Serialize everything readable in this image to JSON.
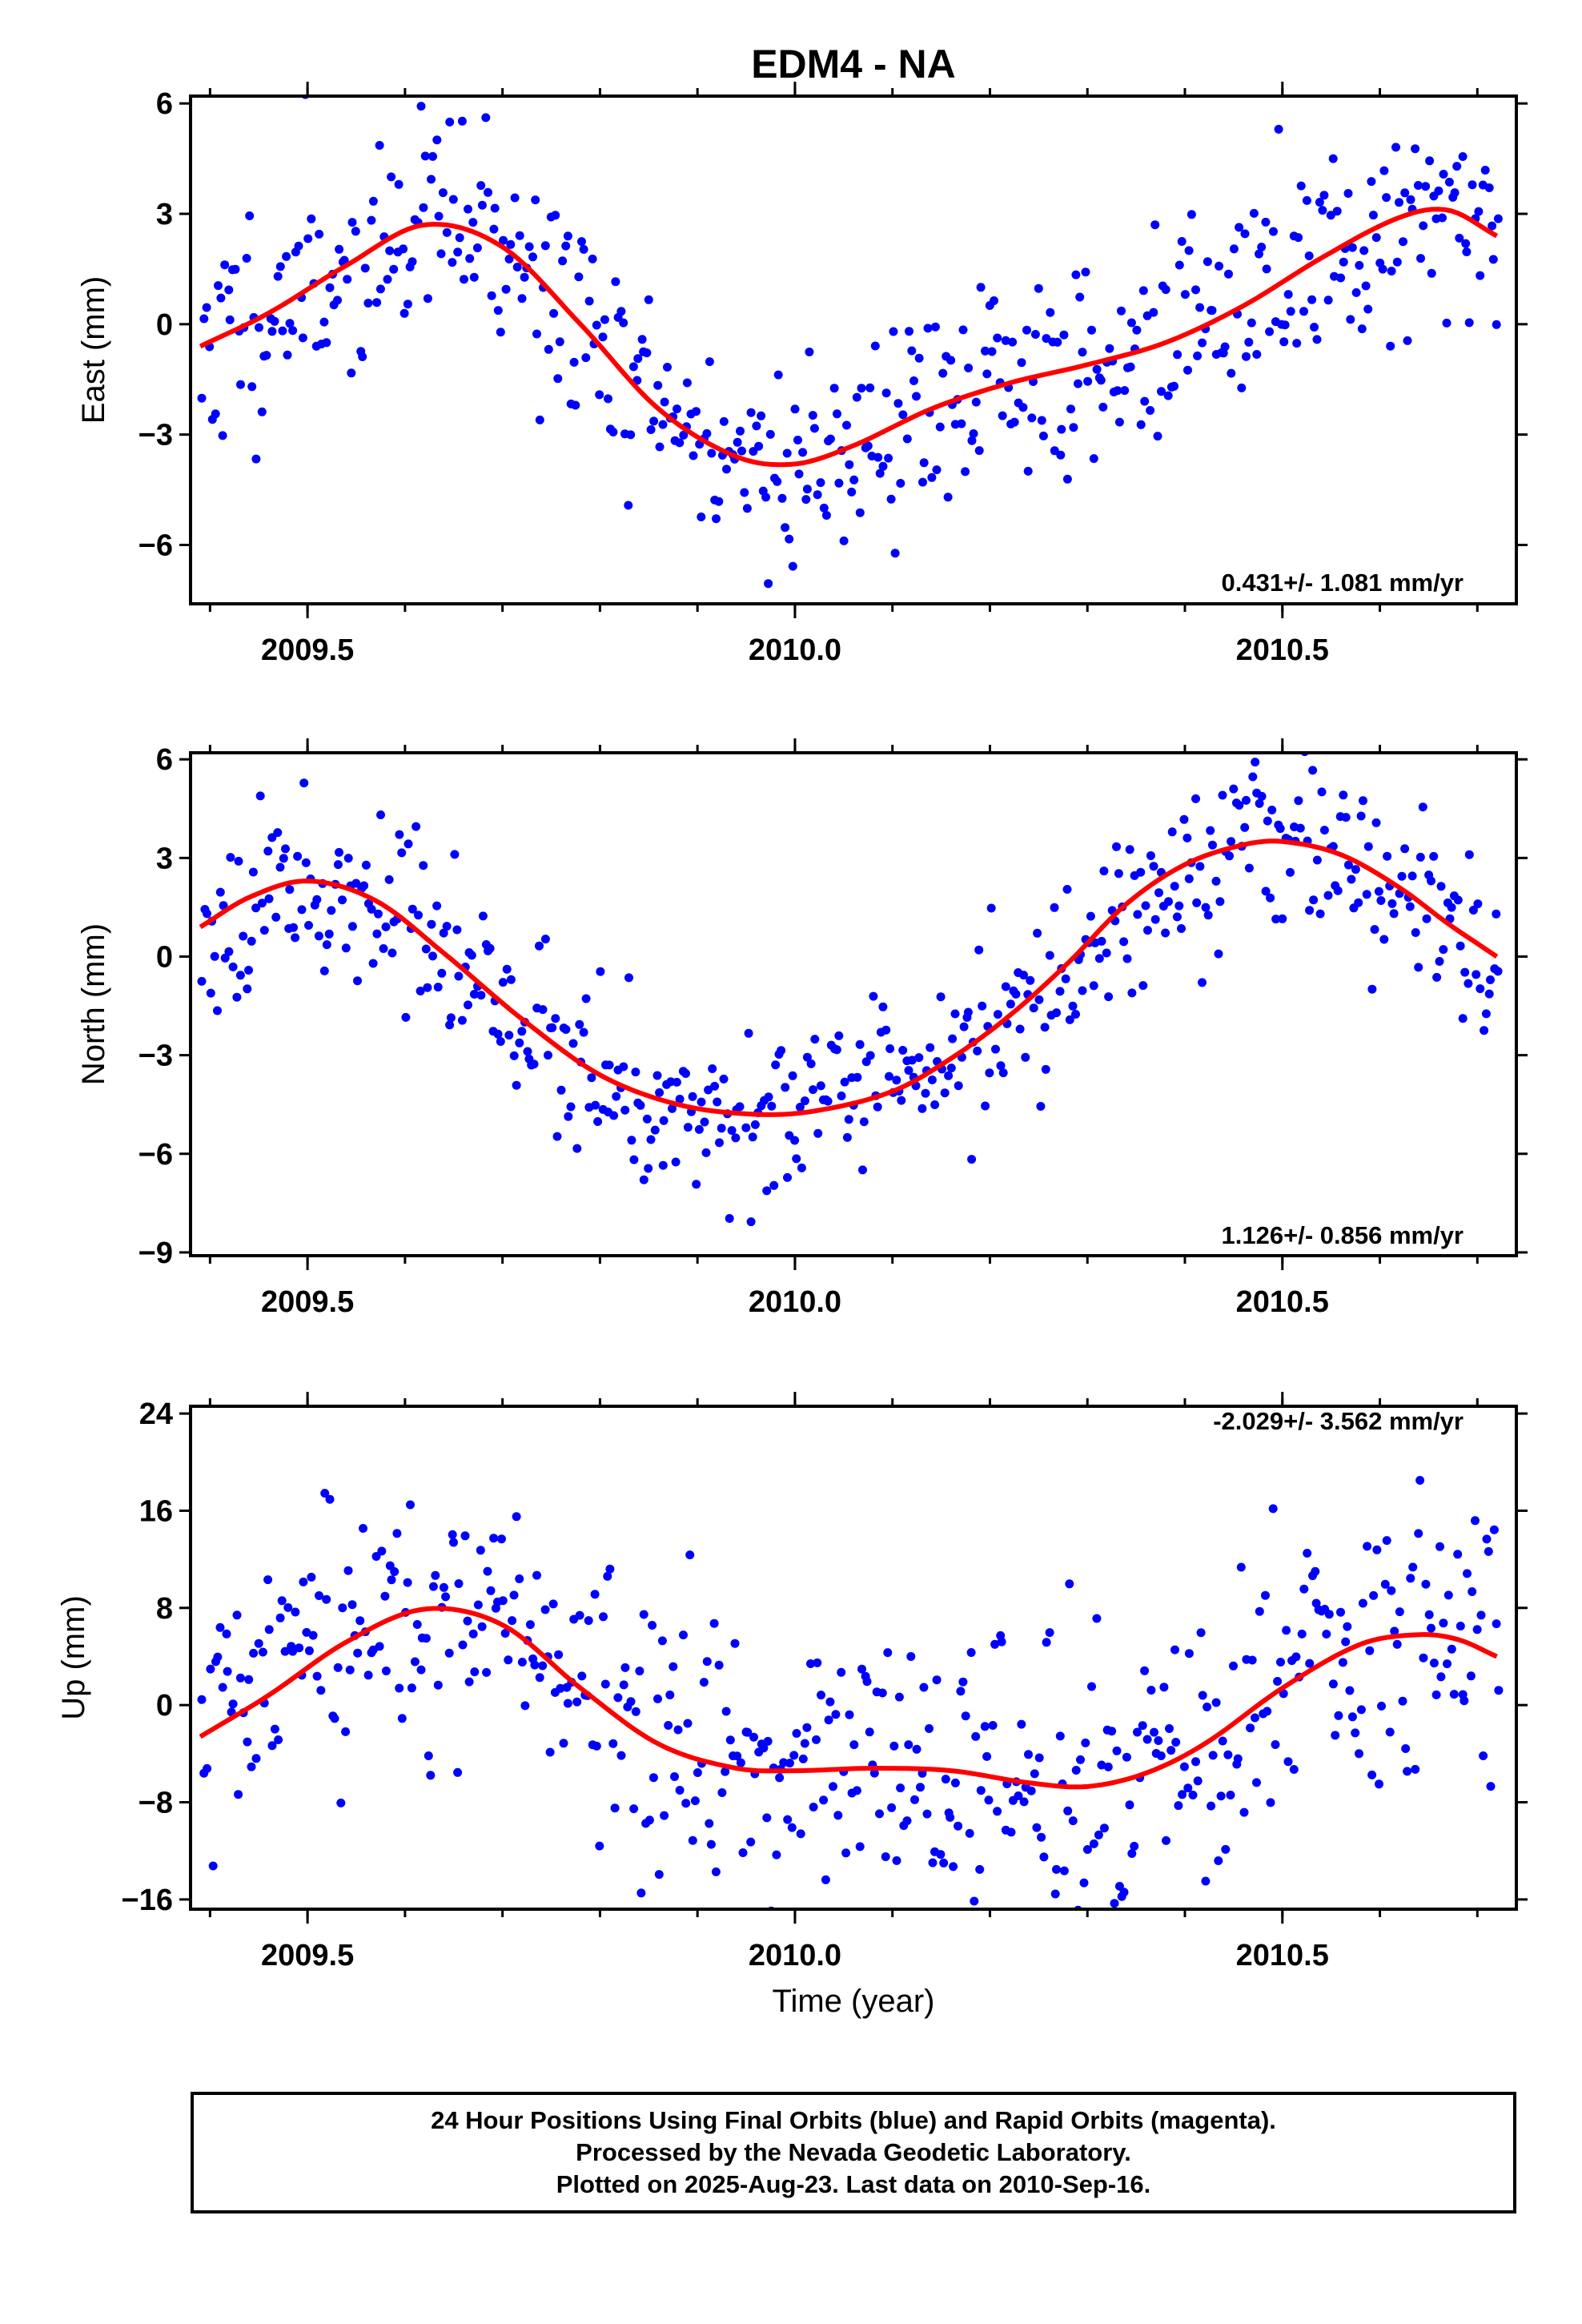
{
  "title": "EDM4 - NA",
  "xlabel": "Time (year)",
  "footer": {
    "line1": "24 Hour Positions Using Final Orbits (blue) and Rapid Orbits (magenta).",
    "line2": "Processed by the Nevada Geodetic Laboratory.",
    "line3": "Plotted on 2025-Aug-23. Last data on 2010-Sep-16."
  },
  "colors": {
    "final_orbits": "#0000ff",
    "fit": "#ff0000",
    "frame": "#000000"
  },
  "chart_data": [
    {
      "type": "scatter",
      "ylabel": "East (mm)",
      "rate": "0.431+/- 1.081 mm/yr",
      "xlim": [
        2009.38,
        2010.74
      ],
      "ylim": [
        -7.6,
        6.2
      ],
      "yticks": [
        -6,
        -3,
        0,
        3,
        6
      ],
      "ytick_labels": [
        "−6",
        "−3",
        "0",
        "3",
        "6"
      ],
      "xticks": [
        2009.5,
        2010.0,
        2010.5
      ],
      "xtick_labels": [
        "2009.5",
        "2010.0",
        "2010.5"
      ],
      "fit": {
        "x": [
          2009.39,
          2009.46,
          2009.54,
          2009.62,
          2009.7,
          2009.78,
          2009.86,
          2009.94,
          2010.0,
          2010.06,
          2010.14,
          2010.22,
          2010.3,
          2010.38,
          2010.46,
          2010.54,
          2010.62,
          2010.67,
          2010.72
        ],
        "y": [
          -0.6,
          0.3,
          1.6,
          2.7,
          2.1,
          0.0,
          -2.3,
          -3.6,
          -3.8,
          -3.3,
          -2.3,
          -1.6,
          -1.1,
          -0.5,
          0.5,
          1.8,
          2.9,
          3.1,
          2.4
        ]
      },
      "series": [
        {
          "generator": {
            "n": 500,
            "amp": 1.5,
            "seed": 11
          }
        }
      ]
    },
    {
      "type": "scatter",
      "ylabel": "North (mm)",
      "rate": "1.126+/- 0.856 mm/yr",
      "xlim": [
        2009.38,
        2010.74
      ],
      "ylim": [
        -9.1,
        6.2
      ],
      "yticks": [
        -9,
        -6,
        -3,
        0,
        3,
        6
      ],
      "ytick_labels": [
        "−9",
        "−6",
        "−3",
        "0",
        "3",
        "6"
      ],
      "xticks": [
        2009.5,
        2010.0,
        2010.5
      ],
      "xtick_labels": [
        "2009.5",
        "2010.0",
        "2010.5"
      ],
      "fit": {
        "x": [
          2009.39,
          2009.44,
          2009.5,
          2009.57,
          2009.64,
          2009.72,
          2009.8,
          2009.88,
          2009.96,
          2010.02,
          2010.1,
          2010.16,
          2010.22,
          2010.28,
          2010.34,
          2010.4,
          2010.46,
          2010.5,
          2010.56,
          2010.62,
          2010.67,
          2010.72
        ],
        "y": [
          0.9,
          1.8,
          2.3,
          1.7,
          0.1,
          -1.9,
          -3.6,
          -4.5,
          -4.8,
          -4.7,
          -4.1,
          -3.1,
          -1.8,
          -0.2,
          1.6,
          2.8,
          3.4,
          3.5,
          3.1,
          2.1,
          1.0,
          0.0
        ]
      },
      "series": [
        {
          "generator": {
            "n": 500,
            "amp": 1.3,
            "seed": 23
          }
        }
      ]
    },
    {
      "type": "scatter",
      "ylabel": "Up (mm)",
      "rate": "-2.029+/- 3.562 mm/yr",
      "xlim": [
        2009.38,
        2010.74
      ],
      "ylim": [
        -16.8,
        24.6
      ],
      "yticks": [
        -16,
        -8,
        0,
        8,
        16,
        24
      ],
      "ytick_labels": [
        "−16",
        "−8",
        "0",
        "8",
        "16",
        "24"
      ],
      "xticks": [
        2009.5,
        2010.0,
        2010.5
      ],
      "xtick_labels": [
        "2009.5",
        "2010.0",
        "2010.5"
      ],
      "fit": {
        "x": [
          2009.39,
          2009.46,
          2009.54,
          2009.62,
          2009.7,
          2009.78,
          2009.86,
          2009.94,
          2010.0,
          2010.08,
          2010.16,
          2010.24,
          2010.3,
          2010.36,
          2010.42,
          2010.5,
          2010.58,
          2010.64,
          2010.68,
          2010.72
        ],
        "y": [
          -2.6,
          0.8,
          5.2,
          7.9,
          6.6,
          1.4,
          -3.2,
          -5.2,
          -5.4,
          -5.2,
          -5.4,
          -6.4,
          -6.7,
          -5.6,
          -3.2,
          1.4,
          5.0,
          5.8,
          5.4,
          4.0
        ]
      },
      "series": [
        {
          "generator": {
            "n": 500,
            "amp": 5.5,
            "seed": 37
          }
        }
      ]
    }
  ]
}
